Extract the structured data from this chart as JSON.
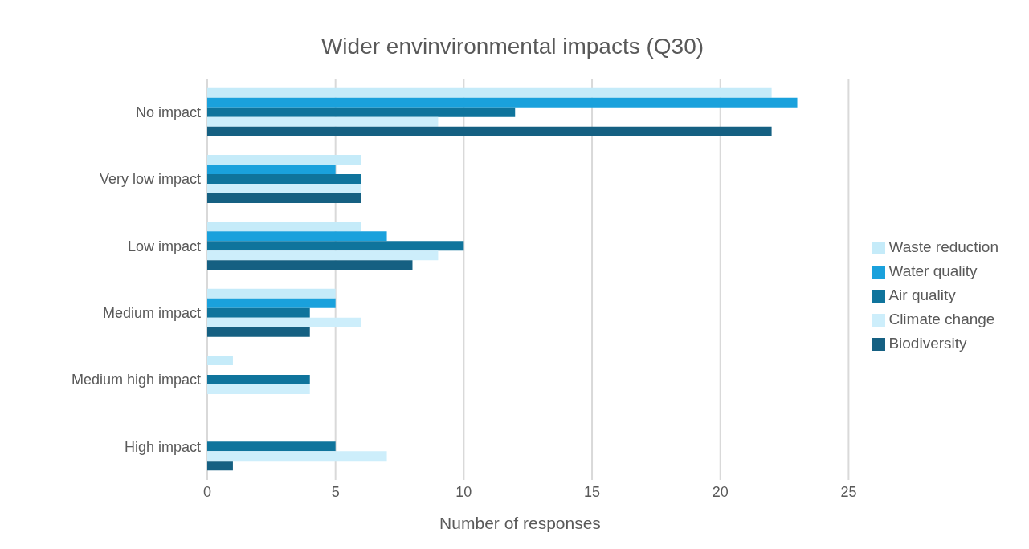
{
  "chart_data": {
    "type": "bar",
    "orientation": "horizontal",
    "title": "Wider envinvironmental impacts (Q30)",
    "xlabel": "Number of responses",
    "categories": [
      "No impact",
      "Very low impact",
      "Low impact",
      "Medium impact",
      "Medium high impact",
      "High impact"
    ],
    "series": [
      {
        "name": "Waste reduction",
        "color": "#c5ebf9",
        "values": [
          22,
          6,
          6,
          5,
          1,
          0
        ]
      },
      {
        "name": "Water quality",
        "color": "#1aa1dc",
        "values": [
          23,
          5,
          7,
          5,
          0,
          0
        ]
      },
      {
        "name": "Air quality",
        "color": "#0f749c",
        "values": [
          12,
          6,
          10,
          4,
          4,
          5
        ]
      },
      {
        "name": "Climate change",
        "color": "#cdeefb",
        "values": [
          9,
          6,
          9,
          6,
          4,
          7
        ]
      },
      {
        "name": "Biodiversity",
        "color": "#156082",
        "values": [
          22,
          6,
          8,
          4,
          0,
          1
        ]
      }
    ],
    "xlim": [
      0,
      25
    ],
    "xticks": [
      0,
      5,
      10,
      15,
      20,
      25
    ],
    "grid": "x",
    "legend": "right"
  }
}
